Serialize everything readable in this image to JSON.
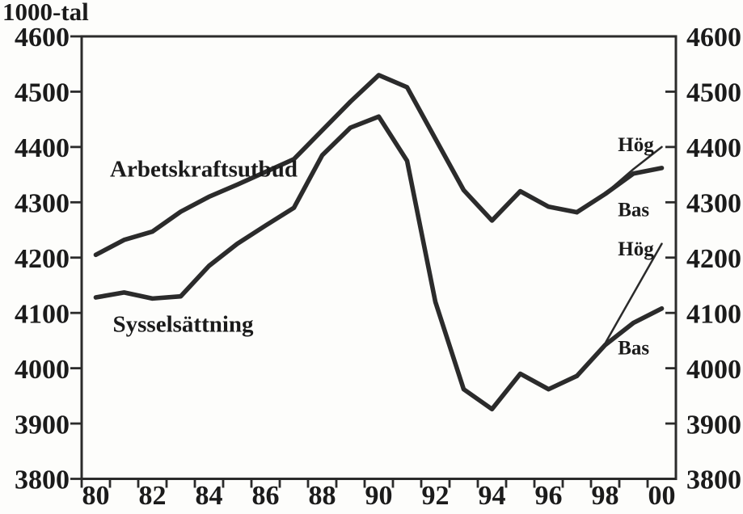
{
  "chart_data": {
    "type": "line",
    "unit_label": "1000-tal",
    "ink_color": "#2b2b2b",
    "background_color": "#fdfdfb",
    "grid": false,
    "legend": "inline-annotations",
    "x_range": [
      1980,
      2000
    ],
    "x_labels": [
      "80",
      "82",
      "84",
      "86",
      "88",
      "90",
      "92",
      "94",
      "96",
      "98",
      "00"
    ],
    "x_label_step": 2,
    "ylim": [
      3800,
      4600
    ],
    "y_tick_step": 100,
    "y_tick_labels": [
      "4600",
      "4500",
      "4400",
      "4300",
      "4200",
      "4100",
      "4000",
      "3900",
      "3800"
    ],
    "series": [
      {
        "name": "Arbetskraftsutbud",
        "style": "thick",
        "x": [
          1980,
          1981,
          1982,
          1983,
          1984,
          1985,
          1986,
          1987,
          1988,
          1989,
          1990,
          1991,
          1992,
          1993,
          1994,
          1995,
          1996,
          1997
        ],
        "values": [
          4205,
          4232,
          4247,
          4283,
          4310,
          4332,
          4355,
          4378,
          4430,
          4482,
          4530,
          4508,
          4415,
          4322,
          4267,
          4320,
          4292,
          4282
        ]
      },
      {
        "name": "Arbetskraftsutbud Hög",
        "style": "thin",
        "x": [
          1997,
          1998,
          1999,
          2000
        ],
        "values": [
          4282,
          4316,
          4360,
          4400
        ]
      },
      {
        "name": "Arbetskraftsutbud Bas",
        "style": "thick",
        "x": [
          1997,
          1998,
          1999,
          2000
        ],
        "values": [
          4282,
          4315,
          4352,
          4362
        ]
      },
      {
        "name": "Sysselsättning",
        "style": "thick",
        "x": [
          1980,
          1981,
          1982,
          1983,
          1984,
          1985,
          1986,
          1987,
          1988,
          1989,
          1990,
          1991,
          1992,
          1993,
          1994,
          1995,
          1996,
          1997
        ],
        "values": [
          4128,
          4137,
          4126,
          4130,
          4185,
          4225,
          4258,
          4290,
          4385,
          4435,
          4455,
          4375,
          4120,
          3962,
          3926,
          3990,
          3962,
          3986
        ]
      },
      {
        "name": "Sysselsättning Hög",
        "style": "thin",
        "x": [
          1997,
          1998,
          1999,
          2000
        ],
        "values": [
          3986,
          4045,
          4135,
          4225
        ]
      },
      {
        "name": "Sysselsättning Bas",
        "style": "thick",
        "x": [
          1997,
          1998,
          1999,
          2000
        ],
        "values": [
          3986,
          4042,
          4082,
          4108
        ]
      }
    ],
    "annotations": [
      {
        "text": "Arbetskraftsutbud",
        "x": 1980.5,
        "y": 4362,
        "size": "lg"
      },
      {
        "text": "Sysselsättning",
        "x": 1980.6,
        "y": 4081,
        "size": "lg"
      },
      {
        "text": "Hög",
        "x": 1998.45,
        "y": 4406,
        "size": "sm"
      },
      {
        "text": "Bas",
        "x": 1998.45,
        "y": 4288,
        "size": "sm"
      },
      {
        "text": "Hög",
        "x": 1998.45,
        "y": 4217,
        "size": "sm"
      },
      {
        "text": "Bas",
        "x": 1998.45,
        "y": 4038,
        "size": "sm"
      }
    ]
  }
}
